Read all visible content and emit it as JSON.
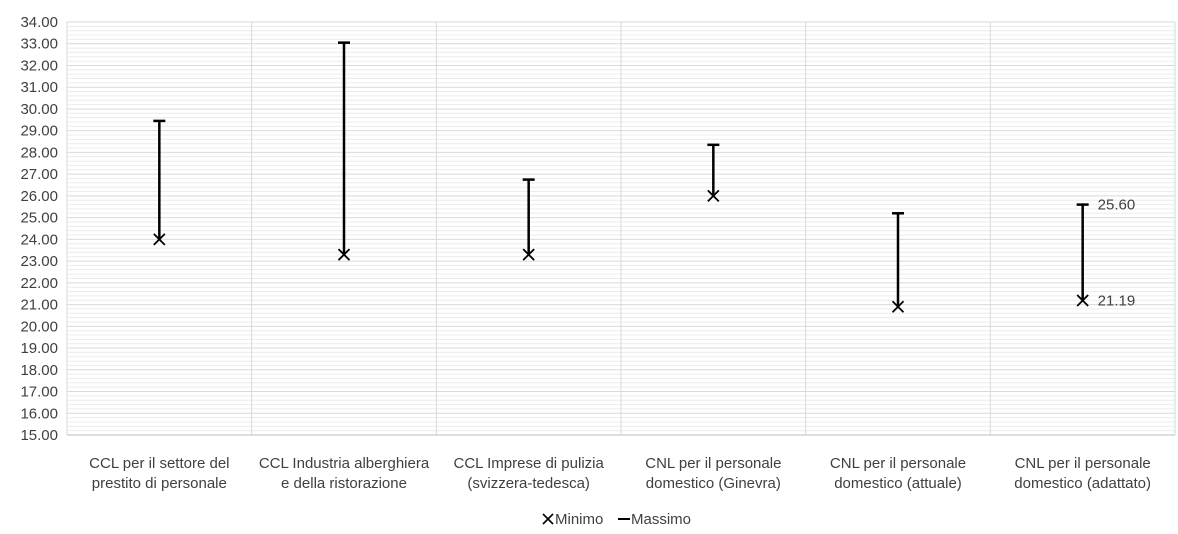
{
  "chart_data": {
    "type": "range",
    "categories": [
      [
        "CCL per il settore del",
        "prestito di personale"
      ],
      [
        "CCL Industria alberghiera",
        "e della ristorazione"
      ],
      [
        "CCL Imprese di pulizia",
        "(svizzera-tedesca)"
      ],
      [
        "CNL per il personale",
        "domestico (Ginevra)"
      ],
      [
        "CNL per il personale",
        "domestico (attuale)"
      ],
      [
        "CNL per il personale",
        "domestico (adattato)"
      ]
    ],
    "series": [
      {
        "name": "Minimo",
        "values": [
          24.0,
          23.3,
          23.3,
          26.0,
          20.9,
          21.19
        ]
      },
      {
        "name": "Massimo",
        "values": [
          29.45,
          33.05,
          26.75,
          28.35,
          25.2,
          25.6
        ]
      }
    ],
    "data_labels": [
      {
        "category_index": 5,
        "series": "Massimo",
        "text": "25.60"
      },
      {
        "category_index": 5,
        "series": "Minimo",
        "text": "21.19"
      }
    ],
    "ylim": [
      15,
      34
    ],
    "ytick_step": 1,
    "ytick_decimals": 2,
    "grid": "major and minor horizontal",
    "legend_position": "bottom",
    "colors": {
      "series": "#000000",
      "major_grid": "#d9d9d9",
      "minor_grid": "#ececec",
      "axis": "#bfbfbf",
      "text": "#404040"
    }
  }
}
